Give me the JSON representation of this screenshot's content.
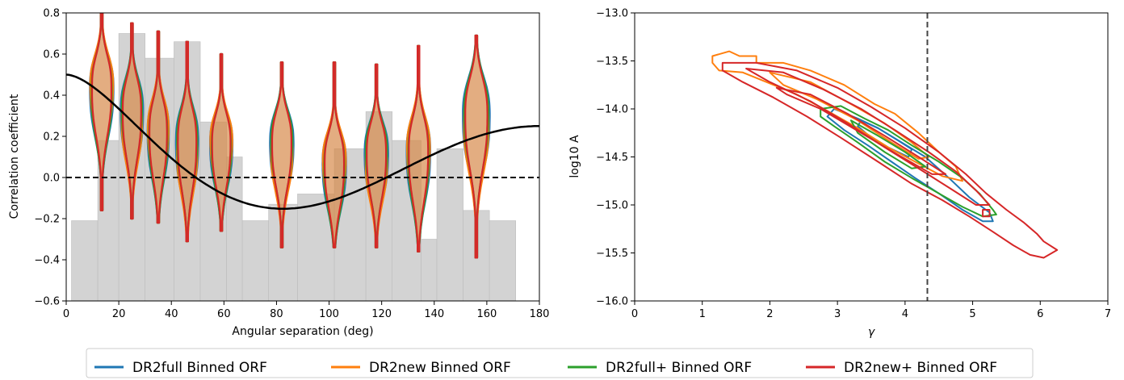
{
  "colors": {
    "dr2full": "#1f77b4",
    "dr2new": "#ff7f0e",
    "dr2full_plus": "#2ca02c",
    "dr2new_plus": "#d62728",
    "hist": "#d3d3d3",
    "violin_fill": "#d98a4a",
    "hd_curve": "#000000",
    "zero_line": "#000000",
    "vline": "#444444"
  },
  "legend": {
    "items": [
      {
        "key": "dr2full",
        "label": "DR2full Binned ORF"
      },
      {
        "key": "dr2new",
        "label": "DR2new Binned ORF"
      },
      {
        "key": "dr2full_plus",
        "label": "DR2full+ Binned ORF"
      },
      {
        "key": "dr2new_plus",
        "label": "DR2new+ Binned ORF"
      }
    ]
  },
  "chart_data": [
    {
      "type": "violin",
      "xlabel": "Angular separation (deg)",
      "ylabel": "Correlation coefficient",
      "xlim": [
        0,
        180
      ],
      "ylim": [
        -0.6,
        0.8
      ],
      "xticks": [
        0,
        20,
        40,
        60,
        80,
        100,
        120,
        140,
        160,
        180
      ],
      "yticks": [
        -0.6,
        -0.4,
        -0.2,
        0.0,
        0.2,
        0.4,
        0.6,
        0.8
      ],
      "ytick_labels": [
        "−0.6",
        "−0.4",
        "−0.2",
        "0.0",
        "0.2",
        "0.4",
        "0.6",
        "0.8"
      ],
      "zero_line": true,
      "hellings_downs_curve": true,
      "histogram": [
        {
          "x0": 2,
          "x1": 12,
          "value": -0.21
        },
        {
          "x0": 12,
          "x1": 20,
          "value": 0.18
        },
        {
          "x0": 20,
          "x1": 30,
          "value": 0.7
        },
        {
          "x0": 30,
          "x1": 41,
          "value": 0.58
        },
        {
          "x0": 41,
          "x1": 51,
          "value": 0.66
        },
        {
          "x0": 51,
          "x1": 61,
          "value": 0.27
        },
        {
          "x0": 61,
          "x1": 67,
          "value": 0.1
        },
        {
          "x0": 67,
          "x1": 77,
          "value": -0.21
        },
        {
          "x0": 77,
          "x1": 88,
          "value": -0.13
        },
        {
          "x0": 88,
          "x1": 102,
          "value": -0.08
        },
        {
          "x0": 102,
          "x1": 114,
          "value": 0.14
        },
        {
          "x0": 114,
          "x1": 124,
          "value": 0.32
        },
        {
          "x0": 124,
          "x1": 135,
          "value": 0.18
        },
        {
          "x0": 135,
          "x1": 141,
          "value": -0.3
        },
        {
          "x0": 141,
          "x1": 151,
          "value": 0.14
        },
        {
          "x0": 151,
          "x1": 161,
          "value": -0.16
        },
        {
          "x0": 161,
          "x1": 171,
          "value": -0.21
        }
      ],
      "violins": [
        {
          "x": 13.5,
          "center": 0.36,
          "min": -0.16,
          "max": 0.8,
          "width": 4.2
        },
        {
          "x": 25,
          "center": 0.25,
          "min": -0.2,
          "max": 0.75,
          "width": 4.0
        },
        {
          "x": 35,
          "center": 0.15,
          "min": -0.22,
          "max": 0.71,
          "width": 3.8
        },
        {
          "x": 46,
          "center": 0.1,
          "min": -0.31,
          "max": 0.66,
          "width": 4.0
        },
        {
          "x": 59,
          "center": 0.1,
          "min": -0.26,
          "max": 0.6,
          "width": 4.0
        },
        {
          "x": 82,
          "center": 0.1,
          "min": -0.34,
          "max": 0.56,
          "width": 4.2
        },
        {
          "x": 102,
          "center": 0.0,
          "min": -0.34,
          "max": 0.56,
          "width": 4.2
        },
        {
          "x": 118,
          "center": 0.05,
          "min": -0.34,
          "max": 0.55,
          "width": 4.2
        },
        {
          "x": 134,
          "center": 0.05,
          "min": -0.36,
          "max": 0.64,
          "width": 4.2
        },
        {
          "x": 156,
          "center": 0.22,
          "min": -0.39,
          "max": 0.69,
          "width": 4.8
        }
      ]
    },
    {
      "type": "contour",
      "xlabel": "γ",
      "ylabel": "log10 A",
      "xlim": [
        0,
        7
      ],
      "ylim": [
        -16.0,
        -13.0
      ],
      "xticks": [
        0,
        1,
        2,
        3,
        4,
        5,
        6,
        7
      ],
      "yticks": [
        -16.0,
        -15.5,
        -15.0,
        -14.5,
        -14.0,
        -13.5,
        -13.0
      ],
      "ytick_labels": [
        "−16.0",
        "−15.5",
        "−15.0",
        "−14.5",
        "−14.0",
        "−13.5",
        "−13.0"
      ],
      "vline_x": 4.33,
      "series": [
        {
          "key": "dr2full",
          "contours": [
            [
              [
                2.95,
                -14.0
              ],
              [
                3.3,
                -14.1
              ],
              [
                3.6,
                -14.2
              ],
              [
                3.95,
                -14.35
              ],
              [
                4.3,
                -14.5
              ],
              [
                4.65,
                -14.72
              ],
              [
                4.95,
                -14.92
              ],
              [
                5.25,
                -15.08
              ],
              [
                5.3,
                -15.17
              ],
              [
                5.15,
                -15.17
              ],
              [
                4.85,
                -15.05
              ],
              [
                4.5,
                -14.88
              ],
              [
                4.15,
                -14.72
              ],
              [
                3.8,
                -14.55
              ],
              [
                3.45,
                -14.38
              ],
              [
                3.1,
                -14.22
              ],
              [
                2.85,
                -14.08
              ]
            ],
            [
              [
                3.35,
                -14.12
              ],
              [
                3.6,
                -14.2
              ],
              [
                3.9,
                -14.33
              ],
              [
                4.1,
                -14.42
              ],
              [
                4.05,
                -14.5
              ],
              [
                3.75,
                -14.4
              ],
              [
                3.45,
                -14.27
              ],
              [
                3.3,
                -14.18
              ]
            ]
          ]
        },
        {
          "key": "dr2new",
          "contours": [
            [
              [
                1.15,
                -13.45
              ],
              [
                1.4,
                -13.4
              ],
              [
                1.55,
                -13.45
              ],
              [
                1.8,
                -13.45
              ],
              [
                1.8,
                -13.52
              ],
              [
                2.2,
                -13.52
              ],
              [
                2.6,
                -13.6
              ],
              [
                3.1,
                -13.75
              ],
              [
                3.55,
                -13.95
              ],
              [
                3.85,
                -14.05
              ],
              [
                4.2,
                -14.25
              ],
              [
                4.5,
                -14.45
              ],
              [
                4.75,
                -14.6
              ],
              [
                4.85,
                -14.75
              ],
              [
                4.55,
                -14.7
              ],
              [
                4.15,
                -14.55
              ],
              [
                3.75,
                -14.4
              ],
              [
                3.3,
                -14.2
              ],
              [
                2.85,
                -14.02
              ],
              [
                2.4,
                -13.85
              ],
              [
                1.95,
                -13.72
              ],
              [
                1.6,
                -13.62
              ],
              [
                1.25,
                -13.6
              ],
              [
                1.15,
                -13.52
              ]
            ],
            [
              [
                2.0,
                -13.62
              ],
              [
                2.6,
                -13.72
              ],
              [
                3.2,
                -13.95
              ],
              [
                3.7,
                -14.15
              ],
              [
                4.1,
                -14.35
              ],
              [
                4.35,
                -14.5
              ],
              [
                4.2,
                -14.52
              ],
              [
                3.8,
                -14.35
              ],
              [
                3.3,
                -14.12
              ],
              [
                2.7,
                -13.9
              ],
              [
                2.2,
                -13.75
              ]
            ]
          ]
        },
        {
          "key": "dr2full_plus",
          "contours": [
            [
              [
                2.75,
                -14.0
              ],
              [
                3.05,
                -13.97
              ],
              [
                3.4,
                -14.1
              ],
              [
                3.75,
                -14.22
              ],
              [
                4.1,
                -14.38
              ],
              [
                4.5,
                -14.55
              ],
              [
                4.85,
                -14.72
              ],
              [
                5.1,
                -14.88
              ],
              [
                5.3,
                -15.05
              ],
              [
                5.35,
                -15.1
              ],
              [
                5.15,
                -15.12
              ],
              [
                4.85,
                -15.02
              ],
              [
                4.5,
                -14.88
              ],
              [
                4.1,
                -14.72
              ],
              [
                3.7,
                -14.55
              ],
              [
                3.3,
                -14.35
              ],
              [
                2.95,
                -14.18
              ],
              [
                2.75,
                -14.08
              ]
            ],
            [
              [
                3.2,
                -14.12
              ],
              [
                3.6,
                -14.28
              ],
              [
                4.0,
                -14.45
              ],
              [
                4.3,
                -14.6
              ],
              [
                4.1,
                -14.62
              ],
              [
                3.7,
                -14.45
              ],
              [
                3.3,
                -14.25
              ]
            ]
          ]
        },
        {
          "key": "dr2new_plus",
          "contours": [
            [
              [
                1.3,
                -13.52
              ],
              [
                1.8,
                -13.52
              ],
              [
                2.4,
                -13.6
              ],
              [
                3.0,
                -13.78
              ],
              [
                3.5,
                -13.98
              ],
              [
                4.0,
                -14.2
              ],
              [
                4.5,
                -14.45
              ],
              [
                4.9,
                -14.68
              ],
              [
                5.2,
                -14.88
              ],
              [
                5.5,
                -15.05
              ],
              [
                5.75,
                -15.18
              ],
              [
                5.95,
                -15.3
              ],
              [
                6.05,
                -15.38
              ],
              [
                6.25,
                -15.47
              ],
              [
                6.05,
                -15.55
              ],
              [
                5.85,
                -15.52
              ],
              [
                5.6,
                -15.42
              ],
              [
                5.3,
                -15.28
              ],
              [
                4.95,
                -15.12
              ],
              [
                4.55,
                -14.95
              ],
              [
                4.1,
                -14.78
              ],
              [
                3.6,
                -14.55
              ],
              [
                3.05,
                -14.3
              ],
              [
                2.55,
                -14.08
              ],
              [
                2.05,
                -13.88
              ],
              [
                1.6,
                -13.72
              ],
              [
                1.3,
                -13.6
              ]
            ],
            [
              [
                1.65,
                -13.58
              ],
              [
                2.2,
                -13.62
              ],
              [
                2.8,
                -13.8
              ],
              [
                3.35,
                -14.0
              ],
              [
                3.85,
                -14.22
              ],
              [
                4.35,
                -14.45
              ],
              [
                4.75,
                -14.65
              ],
              [
                5.05,
                -14.85
              ],
              [
                5.25,
                -15.0
              ],
              [
                5.05,
                -15.0
              ],
              [
                4.65,
                -14.82
              ],
              [
                4.2,
                -14.62
              ],
              [
                3.7,
                -14.4
              ],
              [
                3.15,
                -14.15
              ],
              [
                2.6,
                -13.92
              ],
              [
                2.0,
                -13.72
              ]
            ],
            [
              [
                2.1,
                -13.78
              ],
              [
                2.6,
                -13.85
              ],
              [
                3.15,
                -14.05
              ],
              [
                3.7,
                -14.28
              ],
              [
                4.2,
                -14.5
              ],
              [
                4.6,
                -14.68
              ],
              [
                4.4,
                -14.68
              ],
              [
                3.9,
                -14.48
              ],
              [
                3.35,
                -14.25
              ],
              [
                2.75,
                -14.0
              ],
              [
                2.25,
                -13.85
              ]
            ],
            [
              [
                5.15,
                -15.05
              ],
              [
                5.25,
                -15.05
              ],
              [
                5.25,
                -15.12
              ],
              [
                5.15,
                -15.12
              ]
            ]
          ]
        }
      ]
    }
  ]
}
